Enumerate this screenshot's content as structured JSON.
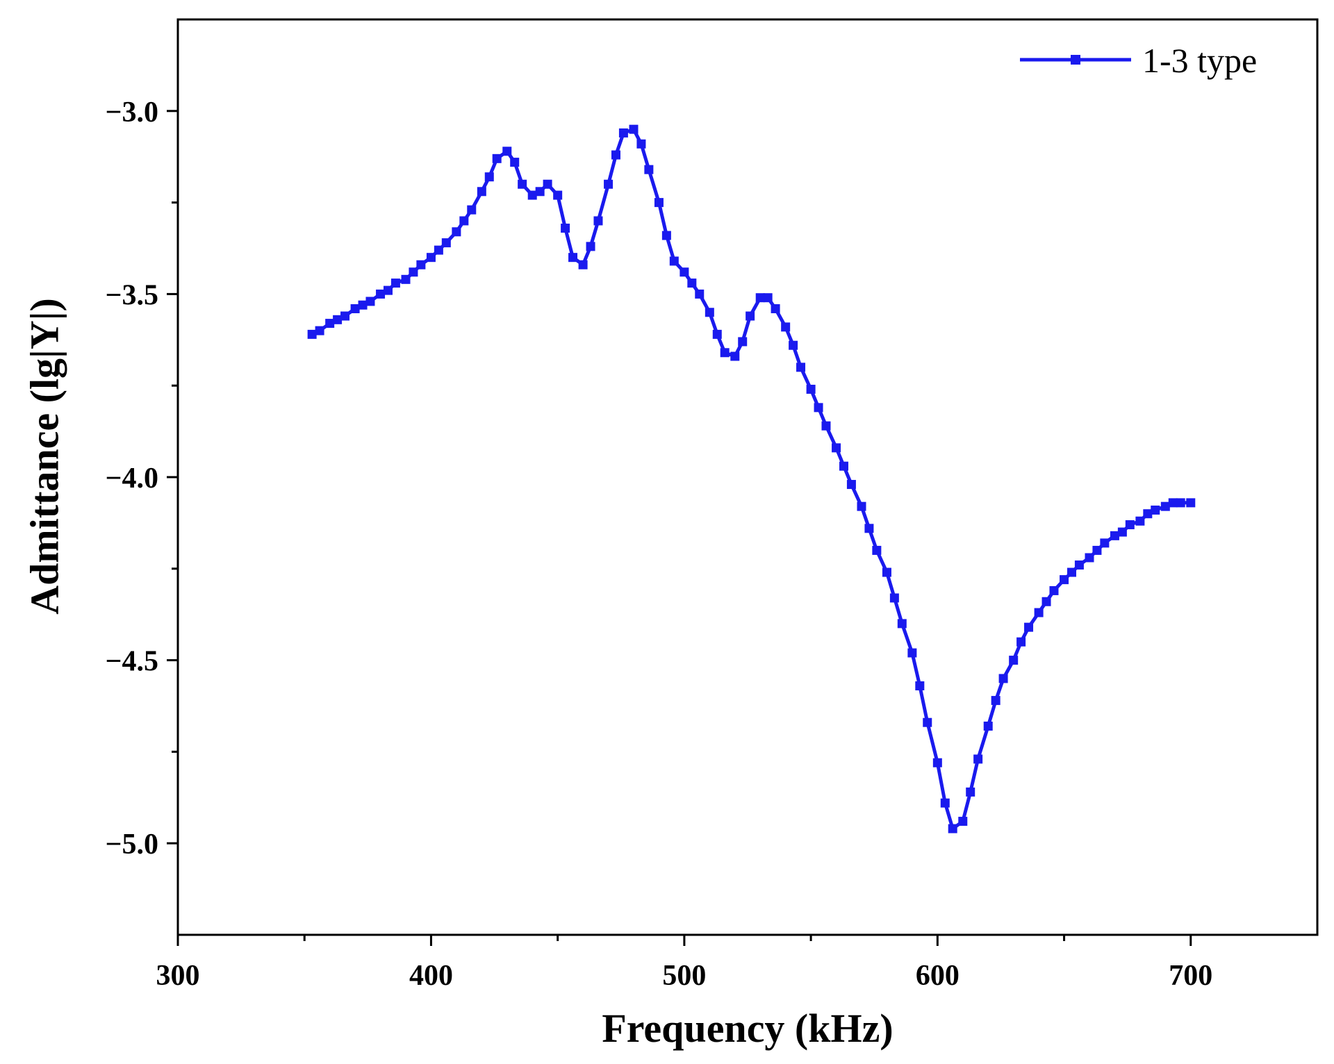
{
  "chart_data": {
    "type": "line",
    "xlabel": "Frequency (kHz)",
    "ylabel": "Admittance (lg|Y|)",
    "xlim": [
      300,
      750
    ],
    "ylim": [
      -5.25,
      -2.75
    ],
    "xticks": [
      300,
      400,
      500,
      600,
      700
    ],
    "xtick_labels": [
      "300",
      "400",
      "500",
      "600",
      "700"
    ],
    "xminor": [
      350,
      450,
      550,
      650
    ],
    "yticks": [
      -3.0,
      -3.5,
      -4.0,
      -4.5,
      -5.0
    ],
    "ytick_labels": [
      "−3.0",
      "−3.5",
      "−4.0",
      "−4.5",
      "−5.0"
    ],
    "yminor": [
      -3.25,
      -3.75,
      -4.25,
      -4.75
    ],
    "grid": false,
    "legend_position": "top-right",
    "series_color": "#1a1aee",
    "series": [
      {
        "name": "1-3 type",
        "marker": "square",
        "x": [
          353,
          356,
          360,
          363,
          366,
          370,
          373,
          376,
          380,
          383,
          386,
          390,
          393,
          396,
          400,
          403,
          406,
          410,
          413,
          416,
          420,
          423,
          426,
          430,
          433,
          436,
          440,
          443,
          446,
          450,
          453,
          456,
          460,
          463,
          466,
          470,
          473,
          476,
          480,
          483,
          486,
          490,
          493,
          496,
          500,
          503,
          506,
          510,
          513,
          516,
          520,
          523,
          526,
          530,
          533,
          536,
          540,
          543,
          546,
          550,
          553,
          556,
          560,
          563,
          566,
          570,
          573,
          576,
          580,
          583,
          586,
          590,
          593,
          596,
          600,
          603,
          606,
          610,
          613,
          616,
          620,
          623,
          626,
          630,
          633,
          636,
          640,
          643,
          646,
          650,
          653,
          656,
          660,
          663,
          666,
          670,
          673,
          676,
          680,
          683,
          686,
          690,
          693,
          696,
          700
        ],
        "y": [
          -3.61,
          -3.6,
          -3.58,
          -3.57,
          -3.56,
          -3.54,
          -3.53,
          -3.52,
          -3.5,
          -3.49,
          -3.47,
          -3.46,
          -3.44,
          -3.42,
          -3.4,
          -3.38,
          -3.36,
          -3.33,
          -3.3,
          -3.27,
          -3.22,
          -3.18,
          -3.13,
          -3.11,
          -3.14,
          -3.2,
          -3.23,
          -3.22,
          -3.2,
          -3.23,
          -3.32,
          -3.4,
          -3.42,
          -3.37,
          -3.3,
          -3.2,
          -3.12,
          -3.06,
          -3.05,
          -3.09,
          -3.16,
          -3.25,
          -3.34,
          -3.41,
          -3.44,
          -3.47,
          -3.5,
          -3.55,
          -3.61,
          -3.66,
          -3.67,
          -3.63,
          -3.56,
          -3.51,
          -3.51,
          -3.54,
          -3.59,
          -3.64,
          -3.7,
          -3.76,
          -3.81,
          -3.86,
          -3.92,
          -3.97,
          -4.02,
          -4.08,
          -4.14,
          -4.2,
          -4.26,
          -4.33,
          -4.4,
          -4.48,
          -4.57,
          -4.67,
          -4.78,
          -4.89,
          -4.96,
          -4.94,
          -4.86,
          -4.77,
          -4.68,
          -4.61,
          -4.55,
          -4.5,
          -4.45,
          -4.41,
          -4.37,
          -4.34,
          -4.31,
          -4.28,
          -4.26,
          -4.24,
          -4.22,
          -4.2,
          -4.18,
          -4.16,
          -4.15,
          -4.13,
          -4.12,
          -4.1,
          -4.09,
          -4.08,
          -4.07,
          -4.07,
          -4.07
        ]
      }
    ]
  }
}
